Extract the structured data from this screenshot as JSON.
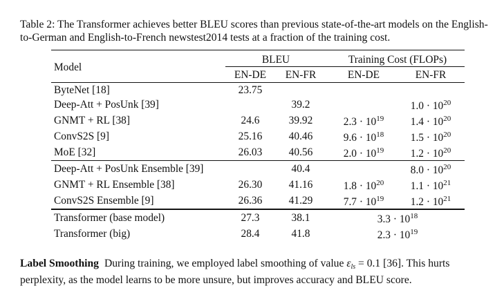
{
  "caption": "Table 2: The Transformer achieves better BLEU scores than previous state-of-the-art models on the English-to-German and English-to-French newstest2014 tests at a fraction of the training cost.",
  "table": {
    "header": {
      "model": "Model",
      "bleu_group": "BLEU",
      "cost_group": "Training Cost (FLOPs)",
      "bleu_en_de": "EN-DE",
      "bleu_en_fr": "EN-FR",
      "cost_en_de": "EN-DE",
      "cost_en_fr": "EN-FR"
    },
    "rows": [
      {
        "model": "ByteNet [18]",
        "bleu_de": "23.75",
        "bleu_fr": "",
        "cost_de": "",
        "cost_fr": ""
      },
      {
        "model": "Deep-Att + PosUnk [39]",
        "bleu_de": "",
        "bleu_fr": "39.2",
        "cost_de": "",
        "cost_fr": "1.0 · 10^20"
      },
      {
        "model": "GNMT + RL [38]",
        "bleu_de": "24.6",
        "bleu_fr": "39.92",
        "cost_de": "2.3 · 10^19",
        "cost_fr": "1.4 · 10^20"
      },
      {
        "model": "ConvS2S [9]",
        "bleu_de": "25.16",
        "bleu_fr": "40.46",
        "cost_de": "9.6 · 10^18",
        "cost_fr": "1.5 · 10^20"
      },
      {
        "model": "MoE [32]",
        "bleu_de": "26.03",
        "bleu_fr": "40.56",
        "cost_de": "2.0 · 10^19",
        "cost_fr": "1.2 · 10^20"
      },
      {
        "model": "Deep-Att + PosUnk Ensemble [39]",
        "bleu_de": "",
        "bleu_fr": "40.4",
        "cost_de": "",
        "cost_fr": "8.0 · 10^20"
      },
      {
        "model": "GNMT + RL Ensemble [38]",
        "bleu_de": "26.30",
        "bleu_fr": "41.16",
        "cost_de": "1.8 · 10^20",
        "cost_fr": "1.1 · 10^21"
      },
      {
        "model": "ConvS2S Ensemble [9]",
        "bleu_de": "26.36",
        "bleu_fr": "41.29",
        "cost_de": "7.7 · 10^19",
        "cost_fr": "1.2 · 10^21"
      },
      {
        "model": "Transformer (base model)",
        "bleu_de": "27.3",
        "bleu_fr": "38.1",
        "cost_merged": "3.3 · 10^18"
      },
      {
        "model": "Transformer (big)",
        "bleu_de": "28.4",
        "bleu_fr": "41.8",
        "cost_merged": "2.3 · 10^19"
      }
    ]
  },
  "paragraph": {
    "heading": "Label Smoothing",
    "text_before": "During training, we employed label smoothing of value ",
    "symbol": "ε",
    "symbol_sub": "ls",
    "text_after": " = 0.1 [36]. This hurts perplexity, as the model learns to be more unsure, but improves accuracy and BLEU score."
  }
}
